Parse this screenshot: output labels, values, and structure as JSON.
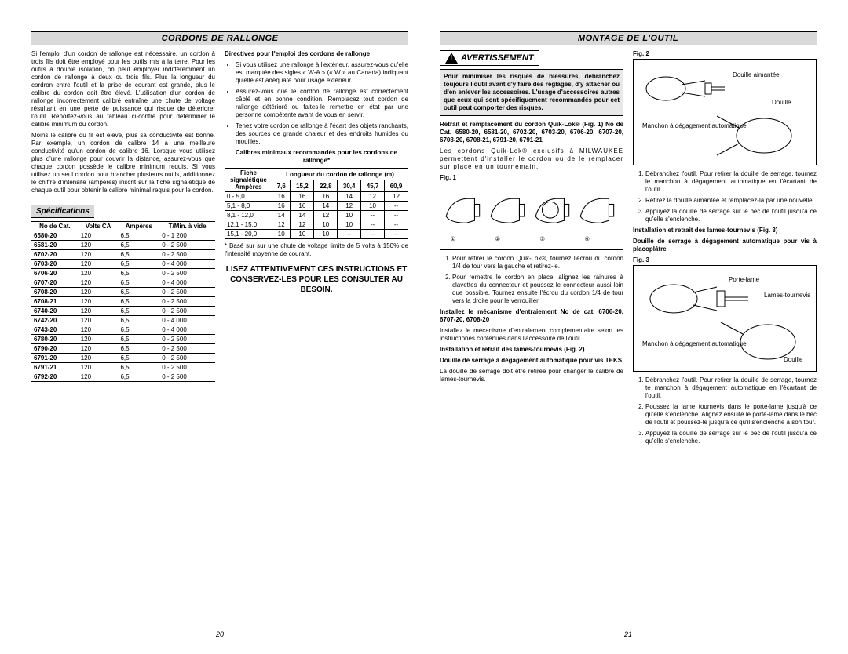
{
  "left": {
    "title": "CORDONS DE RALLONGE",
    "para1": "Si l'emploi d'un cordon de rallonge est nécessaire, un cordon à trois fils doit être employé pour les outils mis à la terre. Pour les outils à double isolation, on peut employer indifféremment un cordon de rallonge à deux ou trois fils. Plus la longueur du cordron entre l'outil et la prise de courant est grande, plus le calibre du cordon doit être élevé. L'utilisation d'un cordon de rallonge incorrectement calibré entraîne une chute de voltage résultant en une perte de puissance qui risque de détériorer l'outil. Reportez-vous au tableau ci-contre pour déterminer le calibre minimum du cordon.",
    "para2": "Moins le calibre du fil est élevé, plus sa conductivité est bonne. Par exemple, un cordon de calibre 14 a une meilleure conductivité qu'un cordon de calibre 16. Lorsque vous utilisez plus d'une rallonge pour couvrir la distance, assurez-vous que chaque cordon possède le calibre minimum requis. Si vous utilisez un seul cordon pour brancher plusieurs outils, additionnez le chiffre d'intensité (ampères) inscrit sur la fiche signalétique de chaque outil pour obtenir le calibre minimal requis pour le cordon.",
    "spec_title": "Spécifications",
    "spec_headers": {
      "cat": "No de Cat.",
      "volts": "Volts CA",
      "amps": "Ampères",
      "tmin": "T/Min. à vide"
    },
    "spec_rows": [
      [
        "6580-20",
        "120",
        "6,5",
        "0 - 1 200"
      ],
      [
        "6581-20",
        "120",
        "6,5",
        "0 - 2 500"
      ],
      [
        "6702-20",
        "120",
        "6,5",
        "0 - 2 500"
      ],
      [
        "6703-20",
        "120",
        "6,5",
        "0 - 4 000"
      ],
      [
        "6706-20",
        "120",
        "6,5",
        "0 - 2 500"
      ],
      [
        "6707-20",
        "120",
        "6,5",
        "0 - 4 000"
      ],
      [
        "6708-20",
        "120",
        "6,5",
        "0 - 2 500"
      ],
      [
        "6708-21",
        "120",
        "6,5",
        "0 - 2 500"
      ],
      [
        "6740-20",
        "120",
        "6,5",
        "0 - 2 500"
      ],
      [
        "6742-20",
        "120",
        "6,5",
        "0 - 4 000"
      ],
      [
        "6743-20",
        "120",
        "6,5",
        "0 - 4 000"
      ],
      [
        "6780-20",
        "120",
        "6,5",
        "0 - 2 500"
      ],
      [
        "6790-20",
        "120",
        "6,5",
        "0 - 2 500"
      ],
      [
        "6791-20",
        "120",
        "6,5",
        "0 - 2 500"
      ],
      [
        "6791-21",
        "120",
        "6,5",
        "0 - 2 500"
      ],
      [
        "6792-20",
        "120",
        "6,5",
        "0 - 2 500"
      ]
    ],
    "dir_title": "Directives pour l'emploi des cordons de rallonge",
    "dir_items": [
      "Si vous utilisez une rallonge à l'extérieur, assurez-vous qu'elle est marquée des sigles « W-A » (« W » au Canada) indiquant qu'elle est adéquate pour usage extérieur.",
      "Assurez-vous que le cordon de rallonge est correctement câblé et en bonne condition. Remplacez tout cordon de rallonge détérioré ou faites-le remettre en état par une personne compétente avant de vous en servir.",
      "Tenez votre cordon de rallonge à l'écart des objets ranchants, des sources de grande chaleur et des endroits humides ou mouillés."
    ],
    "gauge_title": "Calibres minimaux recommandés pour les cordons de rallonge*",
    "gauge_h1": "Fiche signalétique Ampères",
    "gauge_h2": "Longueur du cordon de rallonge (m)",
    "gauge_cols": [
      "7,6",
      "15,2",
      "22,8",
      "30,4",
      "45,7",
      "60,9"
    ],
    "gauge_rows": [
      [
        "0 - 5,0",
        "16",
        "16",
        "16",
        "14",
        "12",
        "12"
      ],
      [
        "5,1 - 8,0",
        "16",
        "16",
        "14",
        "12",
        "10",
        "--"
      ],
      [
        "8,1 - 12,0",
        "14",
        "14",
        "12",
        "10",
        "--",
        "--"
      ],
      [
        "12,1 - 15,0",
        "12",
        "12",
        "10",
        "10",
        "--",
        "--"
      ],
      [
        "15,1 - 20,0",
        "10",
        "10",
        "10",
        "--",
        "--",
        "--"
      ]
    ],
    "gauge_note": "* Basé sur sur une chute de voltage limite de 5 volts à 150% de l'intensité moyenne de courant.",
    "notice": "LISEZ ATTENTIVEMENT CES INSTRUCTIONS ET CONSERVEZ-LES POUR LES CONSULTER AU BESOIN.",
    "page_num": "20"
  },
  "right": {
    "title": "MONTAGE DE L'OUTIL",
    "warn_label": "AVERTISSEMENT",
    "warn_text": "Pour minimiser les risques de blessures, débranchez toujours l'outil avant d'y faire des réglages, d'y attacher ou d'en enlever les accessoires. L'usage d'accessoires autres que ceux qui sont spécifiquement recommandés pour cet outil peut comporter des risques.",
    "retrait_title": "Retrait et remplacement du cordon Quik-Lok® (Fig. 1) No de Cat. 6580-20, 6581-20, 6702-20, 6703-20, 6706-20, 6707-20, 6708-20, 6708-21, 6791-20, 6791-21",
    "retrait_para": "Les cordons Quik-Lok® exclusifs à MILWAUKEE permettent d'installer le cordon ou de le remplacer sur place en un tournemain.",
    "fig1_label": "Fig. 1",
    "retrait_steps": [
      "Pour retirer le cordon Quik-Lok®, tournez l'écrou du cordon 1/4 de tour vers la gauche et retirez-le.",
      "Pour remettre le cordon en place, alignez les rainures à clavettes du connecteur et poussez le connecteur aussi loin que possible. Tournez ensuite l'écrou du cordon 1/4 de tour vers la droite pour le verrouiller."
    ],
    "install_title": "Installez le mécanisme d'entraiement No de cat. 6706-20, 6707-20, 6708-20",
    "install_para": "Installez le mécanisme d'entraîement complementaire selon les instructiones contenues dans l'accessoire de l'outil.",
    "instret_title": "Installation et retrait des lames-tournevis (Fig. 2)",
    "douille_title": "Douille de serrage à dégagement automatique pour vis TEKS",
    "douille_para": "La douille de serrage doit être retirée pour changer le calibre de lames-tournevis.",
    "fig2_label": "Fig. 2",
    "fig2_labels": {
      "a": "Douille aimantée",
      "b": "Douille",
      "c": "Manchon à dégagement automatique"
    },
    "fig2_steps": [
      "Débranchez l'outil. Pour retirer la douille de serrage, tournez le manchon à dégagement automatique en l'écartant de l'outil.",
      "Retirez la douille aimantée et remplacez-la par une nouvelle.",
      "Appuyez la douille de serrage sur le bec de l'outil jusqu'à ce qu'elle s'enclenche."
    ],
    "instret3_title": "Installation et retrait des lames-tournevis (Fig. 3)",
    "douille3_title": "Douille de serrage à dégagement automatique pour vis à placoplâtre",
    "fig3_label": "Fig. 3",
    "fig3_labels": {
      "a": "Porte-lame",
      "b": "Lames-tournevis",
      "c": "Douille",
      "d": "Manchon à dégagement automatique"
    },
    "fig3_steps": [
      "Débranchez l'outil. Pour retirer la douille de serrage, tournez te manchon à dégagement automatique en l'écartant de l'outil.",
      "Poussez la lame tournevis dans le porte-lame jusqu'à ce qu'elle s'enclenche. Alignez ensuite le porte-lame dans le bec de l'outil et poussez-le jusqu'à ce qu'il s'enclenche à son tour.",
      "Appuyez la douille de serrage sur le bec de l'outil jusqu'à ce qu'elle s'enclenche."
    ],
    "page_num": "21"
  }
}
